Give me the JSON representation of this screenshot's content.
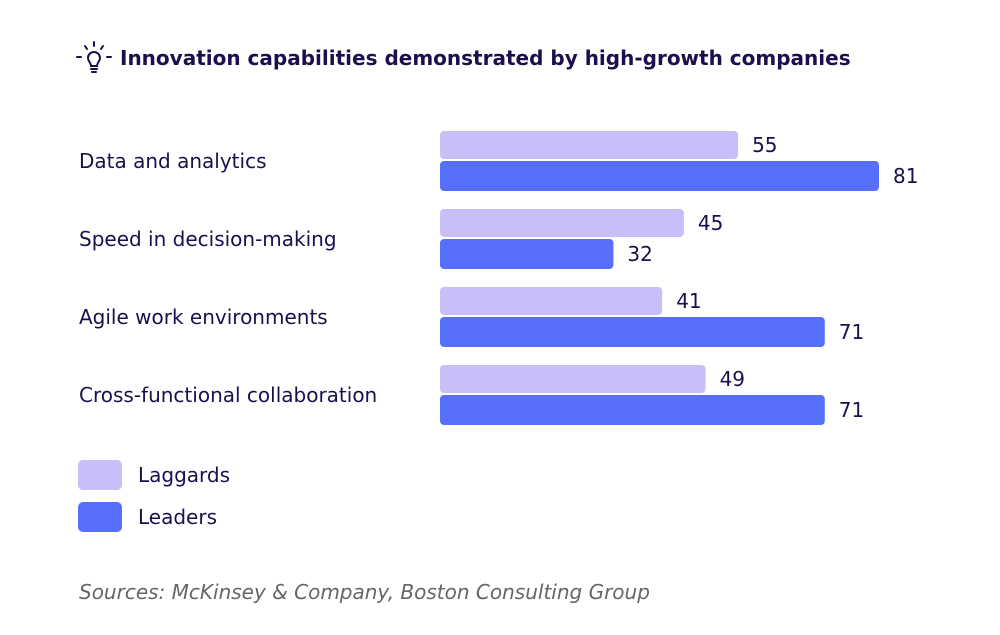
{
  "title": "Innovation capabilities demonstrated by high-growth companies",
  "icon": "lightbulb-icon",
  "source": "Sources: McKinsey & Company, Boston Consulting Group",
  "colors": {
    "Laggards": "#c8bff9",
    "Leaders": "#5670fb",
    "text": "#1d0f4e"
  },
  "chart_data": {
    "type": "bar",
    "orientation": "horizontal",
    "title": "Innovation capabilities demonstrated by high-growth companies",
    "categories": [
      "Data and analytics",
      "Speed in decision-making",
      "Agile work environments",
      "Cross-functional collaboration"
    ],
    "series": [
      {
        "name": "Laggards",
        "values": [
          55,
          45,
          41,
          49
        ]
      },
      {
        "name": "Leaders",
        "values": [
          81,
          32,
          71,
          71
        ]
      }
    ],
    "xlim": [
      0,
      81
    ],
    "grid": false,
    "legend": "bottom-left",
    "data_labels": true
  }
}
